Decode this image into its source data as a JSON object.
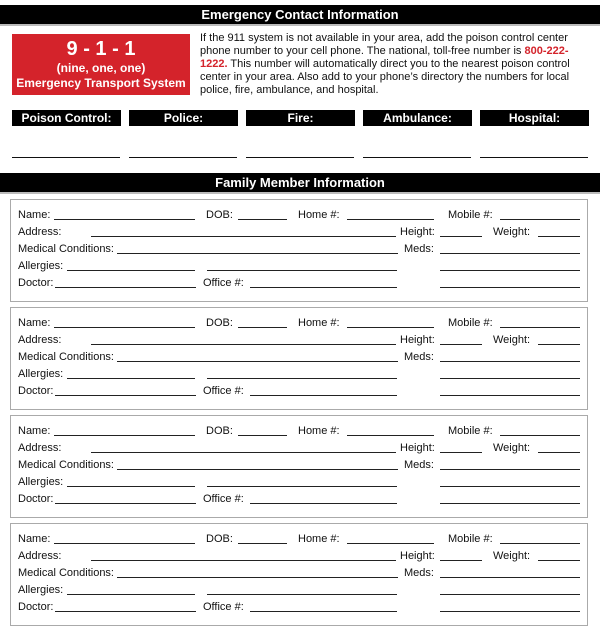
{
  "header": {
    "title": "Emergency Contact Information"
  },
  "emergency_box": {
    "number": "9 - 1 - 1",
    "spelled": "(nine, one, one)",
    "system": "Emergency Transport System",
    "color": "#d4232b"
  },
  "info": {
    "text_before": "If the 911 system is not available in your area, add the poison control center phone number to your cell phone. The national, toll-free number is ",
    "phone": "800-222-1222.",
    "text_after": " This number will automatically direct you to the nearest poison control center in your area. Also add to your phone’s directory the numbers for local police, fire, ambulance, and hospital."
  },
  "contacts": [
    {
      "label": "Poison Control:"
    },
    {
      "label": "Police:"
    },
    {
      "label": "Fire:"
    },
    {
      "label": "Ambulance:"
    },
    {
      "label": "Hospital:"
    }
  ],
  "family": {
    "title": "Family Member Information",
    "labels": {
      "name": "Name:",
      "dob": "DOB:",
      "home": "Home #:",
      "mobile": "Mobile #:",
      "address": "Address:",
      "height": "Height:",
      "weight": "Weight:",
      "medical": "Medical Conditions:",
      "meds": "Meds:",
      "allergies": "Allergies:",
      "doctor": "Doctor:",
      "office": "Office #:"
    },
    "card_count": 4
  }
}
